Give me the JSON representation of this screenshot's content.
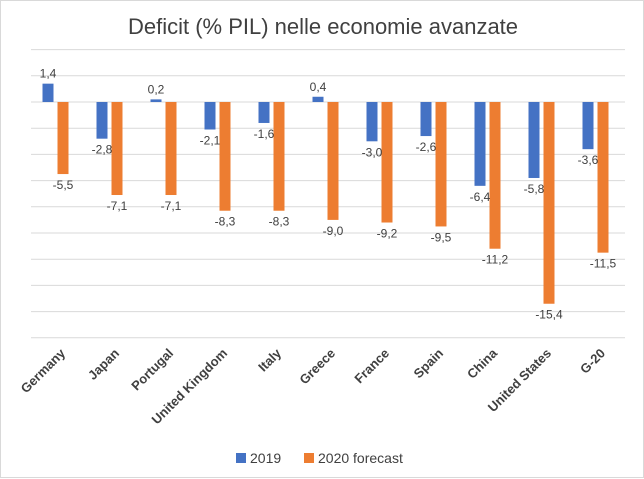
{
  "chart_data": {
    "type": "bar",
    "title": "Deficit (% PIL)  nelle economie avanzate",
    "categories": [
      "Germany",
      "Japan",
      "Portugal",
      "United Kingdom",
      "Italy",
      "Greece",
      "France",
      "Spain",
      "China",
      "United States",
      "G-20"
    ],
    "series": [
      {
        "name": "2019",
        "color": "#4472C4",
        "values": [
          1.4,
          -2.8,
          0.2,
          -2.1,
          -1.6,
          0.4,
          -3.0,
          -2.6,
          -6.4,
          -5.8,
          -3.6
        ],
        "labels": [
          "1,4",
          "-2,8",
          "0,2",
          "-2,1",
          "-1,6",
          "0,4",
          "-3,0",
          "-2,6",
          "-6,4",
          "-5,8",
          "-3,6"
        ]
      },
      {
        "name": "2020 forecast",
        "color": "#ED7D31",
        "values": [
          -5.5,
          -7.1,
          -7.1,
          -8.3,
          -8.3,
          -9.0,
          -9.2,
          -9.5,
          -11.2,
          -15.4,
          -11.5
        ],
        "labels": [
          "-5,5",
          "-7,1",
          "-7,1",
          "-8,3",
          "-8,3",
          "-9,0",
          "-9,2",
          "-9,5",
          "-11,2",
          "-15,4",
          "-11,5"
        ]
      }
    ],
    "ylim": [
      -18,
      4
    ],
    "grid": true,
    "legend_position": "bottom",
    "xlabel": "",
    "ylabel": ""
  }
}
